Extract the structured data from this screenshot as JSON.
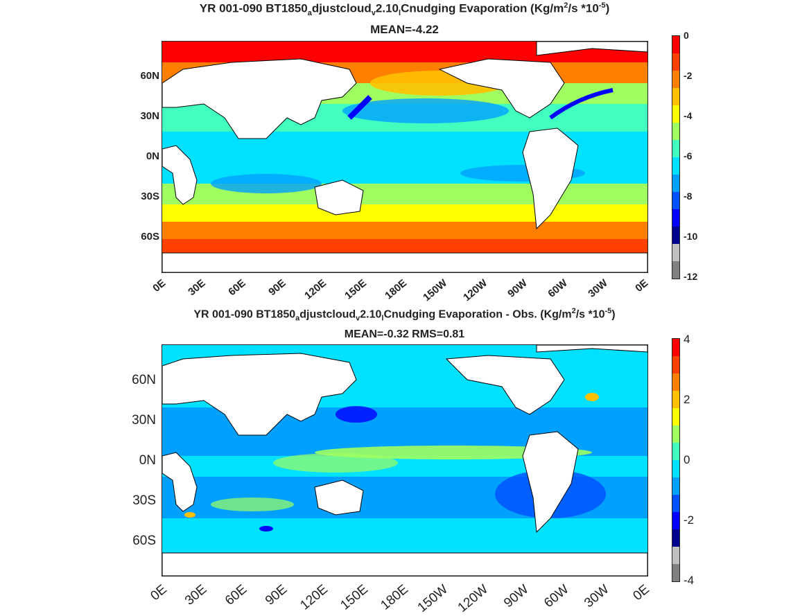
{
  "panels": [
    {
      "title_parts": [
        "YR 001-090 BT1850",
        "a",
        "djustcloud",
        "v",
        "2.10",
        "l",
        "Cnudging  Evaporation (Kg/m",
        "2",
        "/s *10",
        "-5",
        ")"
      ],
      "subtitle": "MEAN=-4.22",
      "ylabels": [
        "60N",
        "30N",
        "0N",
        "30S",
        "60S"
      ],
      "xlabels": [
        "0E",
        "30E",
        "60E",
        "90E",
        "120E",
        "150E",
        "180E",
        "150W",
        "120W",
        "90W",
        "60W",
        "30W",
        "0E"
      ],
      "colorbar_ticks": [
        "0",
        "-2",
        "-4",
        "-6",
        "-8",
        "-10",
        "-12"
      ]
    },
    {
      "title_parts": [
        "YR 001-090 BT1850",
        "a",
        "djustcloud",
        "v",
        "2.10",
        "l",
        "Cnudging Evaporation - Obs. (Kg/m",
        "2",
        "/s *10",
        "-5",
        ")"
      ],
      "subtitle": "MEAN=-0.32   RMS=0.81",
      "ylabels": [
        "60N",
        "30N",
        "0N",
        "30S",
        "60S"
      ],
      "xlabels": [
        "0E",
        "30E",
        "60E",
        "90E",
        "120E",
        "150E",
        "180E",
        "150W",
        "120W",
        "90W",
        "60W",
        "30W",
        "0E"
      ],
      "colorbar_ticks": [
        "4",
        "2",
        "0",
        "-2",
        "-4"
      ]
    }
  ],
  "colors": {
    "jet": [
      "#808080",
      "#c0c0c0",
      "#00008f",
      "#0000ff",
      "#0050ff",
      "#00a0ff",
      "#00e0ff",
      "#40ffbf",
      "#a0ff60",
      "#ffff00",
      "#ffc000",
      "#ff8000",
      "#ff4000",
      "#ff0000"
    ],
    "land": "#ffffff",
    "coast": "#000000"
  }
}
